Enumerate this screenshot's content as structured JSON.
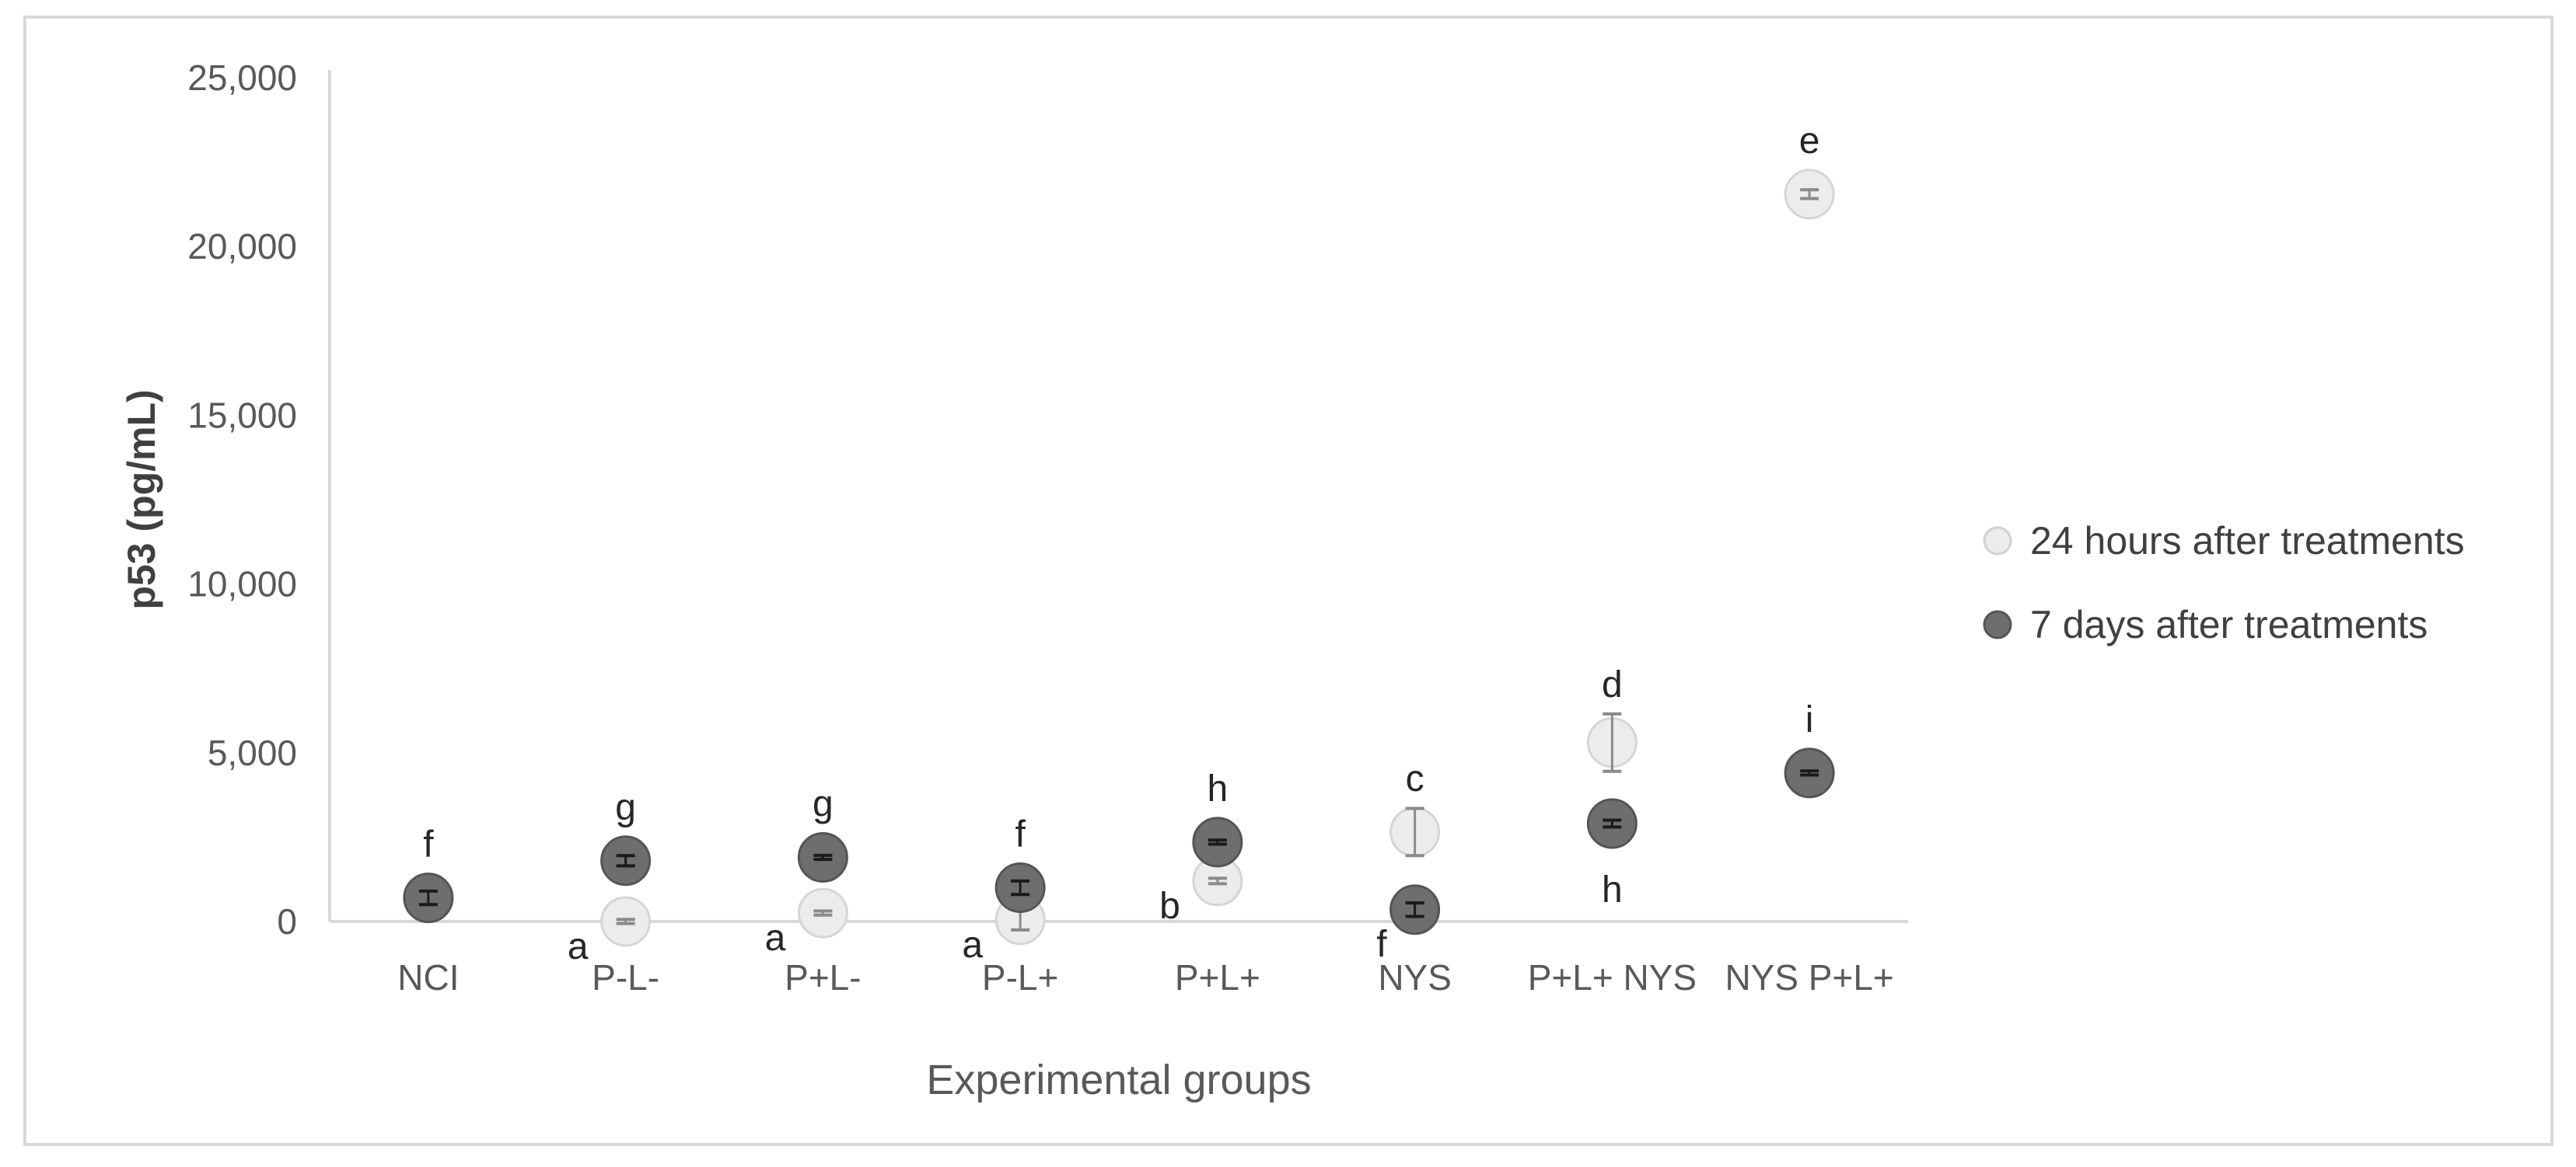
{
  "chart_data": {
    "type": "scatter",
    "title": "",
    "xlabel": "Experimental groups",
    "ylabel": "p53 (pg/mL)",
    "categories": [
      "NCI",
      "P-L-",
      "P+L-",
      "P-L+",
      "P+L+",
      "NYS",
      "P+L+ NYS",
      "NYS P+L+"
    ],
    "ylim": [
      0,
      25000
    ],
    "yticks": [
      0,
      5000,
      10000,
      15000,
      20000,
      25000
    ],
    "ytick_labels": [
      "0",
      "5,000",
      "10,000",
      "15,000",
      "20,000",
      "25,000"
    ],
    "grid": false,
    "legend_position": "right",
    "series": [
      {
        "name": "24 hours after treatments",
        "color": "#ececec",
        "values": [
          null,
          0,
          250,
          50,
          1200,
          2650,
          5300,
          21550
        ],
        "errors": [
          null,
          60,
          60,
          300,
          80,
          700,
          850,
          130
        ],
        "letters": [
          null,
          "a",
          "a",
          "a",
          "b",
          "c",
          "d",
          "e"
        ]
      },
      {
        "name": "7 days after treatments",
        "color": "#6e6e6e",
        "values": [
          700,
          1800,
          1900,
          1000,
          2350,
          350,
          2900,
          4400
        ],
        "errors": [
          200,
          150,
          60,
          200,
          60,
          200,
          100,
          60
        ],
        "letters": [
          "f",
          "g",
          "g",
          "f",
          "h",
          "f",
          "h",
          "i"
        ]
      }
    ]
  }
}
